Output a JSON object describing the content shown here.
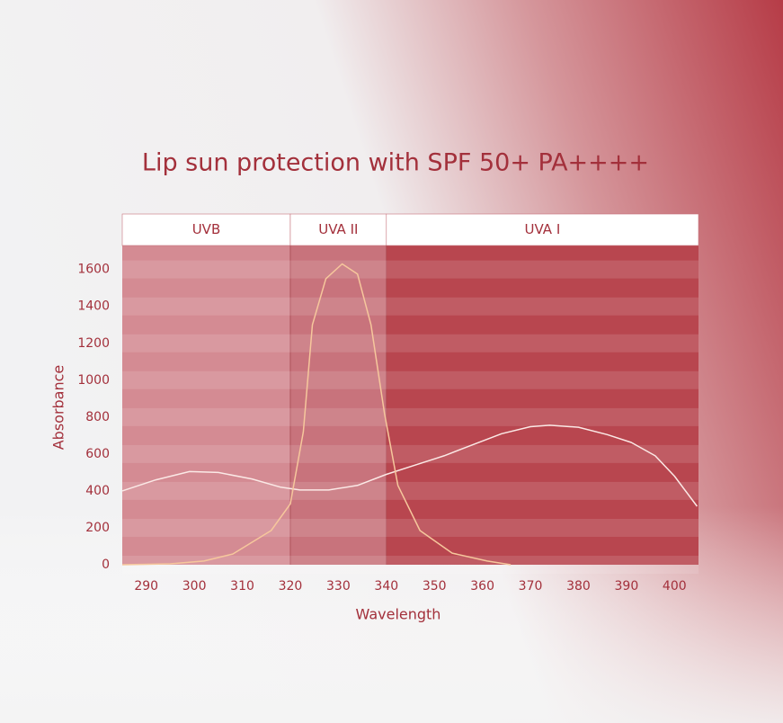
{
  "chart_data": {
    "type": "line",
    "title": "Lip sun protection with SPF 50+ PA++++",
    "x_label": "Wavelength",
    "y_label": "Absorbance",
    "xlim": [
      285,
      405
    ],
    "xticks": [
      290,
      300,
      310,
      320,
      330,
      340,
      350,
      360,
      370,
      380,
      390,
      400
    ],
    "ylim": [
      0,
      1730
    ],
    "yticks": [
      0,
      200,
      400,
      600,
      800,
      1000,
      1200,
      1400,
      1600
    ],
    "grid": true,
    "bands": [
      {
        "label": "UVB",
        "range": [
          285,
          320
        ],
        "color": "#d48b93"
      },
      {
        "label": "UVA II",
        "range": [
          320,
          340
        ],
        "color": "#c8737c"
      },
      {
        "label": "UVA I",
        "range": [
          340,
          405
        ],
        "color": "#b8464f"
      }
    ],
    "series": [
      {
        "color": "#fbe9e6",
        "x": [
          285,
          292,
          299,
          305,
          312,
          318,
          322,
          328,
          334,
          340,
          346,
          352,
          358,
          364,
          370,
          374,
          380,
          386,
          391,
          396,
          400,
          404.7
        ],
        "values": [
          400,
          460,
          505,
          500,
          465,
          420,
          405,
          405,
          430,
          490,
          540,
          590,
          650,
          710,
          748,
          756,
          745,
          705,
          663,
          590,
          480,
          317
        ]
      },
      {
        "color": "#f6c79c",
        "x": [
          285,
          295,
          302,
          308,
          316,
          320,
          322.7,
          324.6,
          327.4,
          330.8,
          334,
          336.8,
          339.6,
          342.4,
          347,
          353.7,
          361,
          365.9
        ],
        "values": [
          0,
          5,
          20,
          58,
          185,
          330,
          720,
          1300,
          1550,
          1630,
          1575,
          1300,
          820,
          430,
          185,
          63,
          20,
          0
        ]
      }
    ]
  }
}
